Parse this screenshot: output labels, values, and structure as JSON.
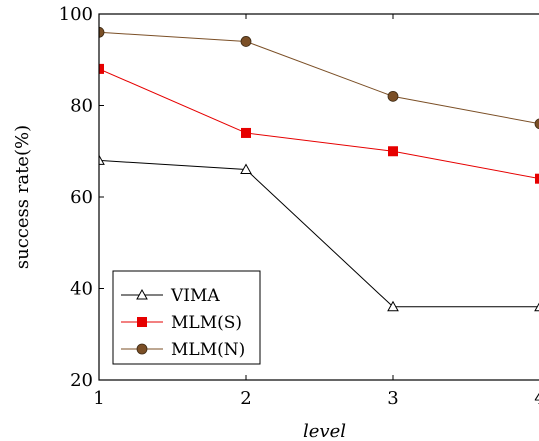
{
  "chart_data": {
    "type": "line",
    "x": [
      1,
      2,
      3,
      4
    ],
    "xlabel": "level",
    "ylabel": "success rate(%)",
    "xlim": [
      1,
      4
    ],
    "ylim": [
      20,
      100
    ],
    "xticks": [
      "1",
      "2",
      "3",
      "4"
    ],
    "yticks": [
      "20",
      "40",
      "60",
      "80",
      "100"
    ],
    "grid": false,
    "legend_position": "bottom-left",
    "series": [
      {
        "name": "VIMA",
        "values": [
          68,
          66,
          36,
          36
        ],
        "color": "#000000",
        "marker": "triangle"
      },
      {
        "name": "MLM(S)",
        "values": [
          88,
          74,
          70,
          64
        ],
        "color": "#e60000",
        "marker": "square"
      },
      {
        "name": "MLM(N)",
        "values": [
          96,
          94,
          82,
          76
        ],
        "color": "#7b4f26",
        "marker": "circle"
      }
    ]
  }
}
